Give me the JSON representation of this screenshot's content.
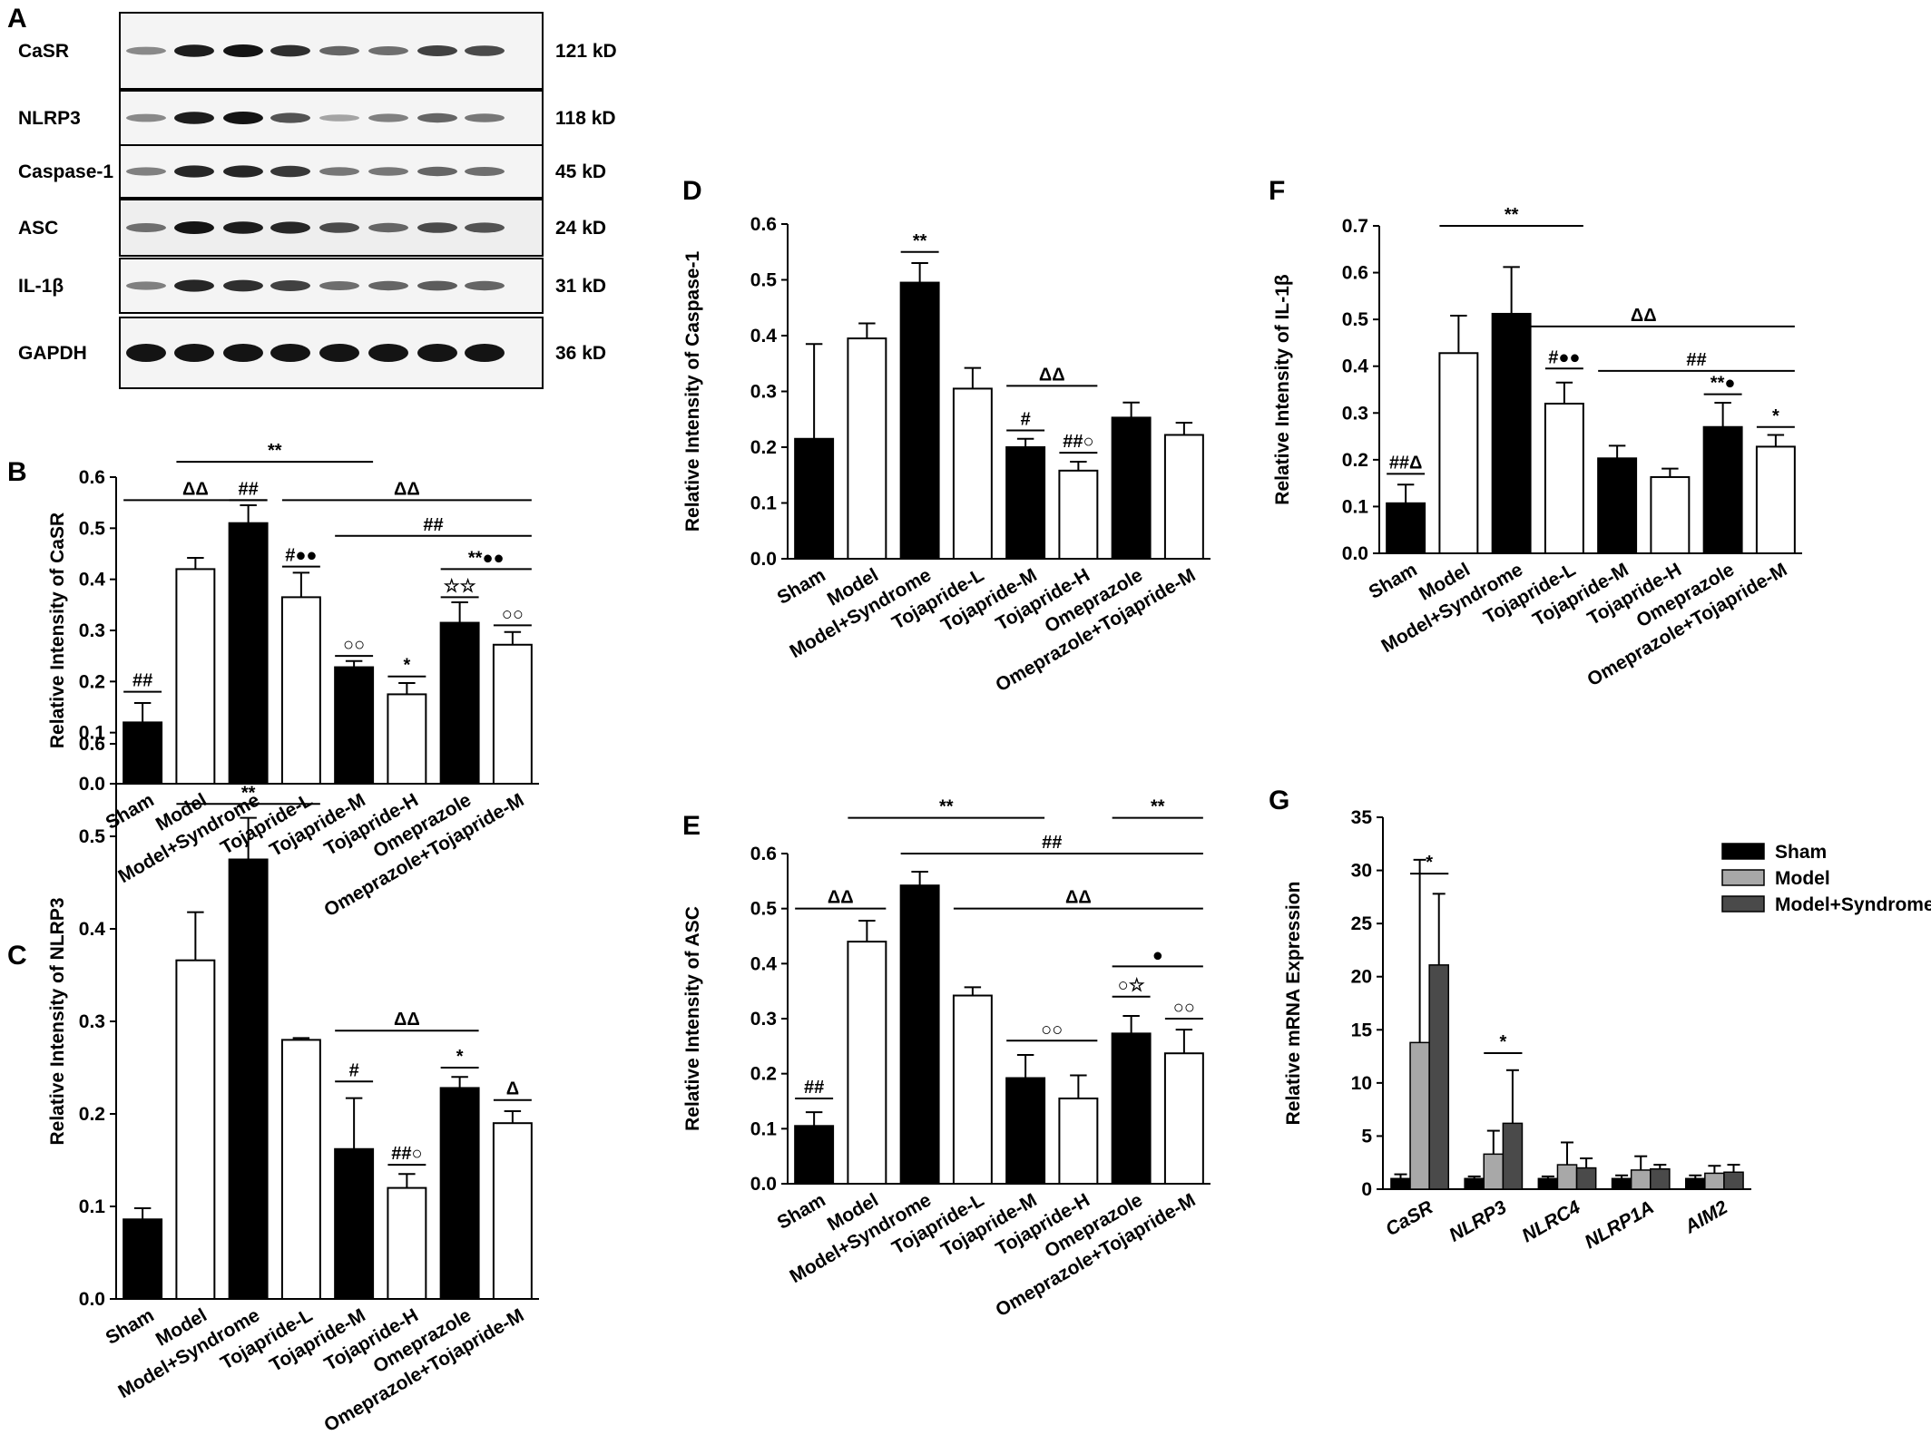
{
  "panels": {
    "A": "A",
    "B": "B",
    "C": "C",
    "D": "D",
    "E": "E",
    "F": "F",
    "G": "G"
  },
  "western_blot": {
    "rows": [
      {
        "protein": "CaSR",
        "size": "121 kD"
      },
      {
        "protein": "NLRP3",
        "size": "118 kD"
      },
      {
        "protein": "Caspase-1",
        "size": "45 kD"
      },
      {
        "protein": "ASC",
        "size": "24 kD"
      },
      {
        "protein": "IL-1β",
        "size": "31 kD"
      },
      {
        "protein": "GAPDH",
        "size": "36 kD"
      }
    ],
    "band_intensity": [
      [
        0.35,
        0.95,
        1.0,
        0.85,
        0.55,
        0.5,
        0.75,
        0.7
      ],
      [
        0.35,
        0.95,
        1.0,
        0.65,
        0.2,
        0.4,
        0.55,
        0.45
      ],
      [
        0.4,
        0.9,
        0.9,
        0.8,
        0.45,
        0.45,
        0.55,
        0.5
      ],
      [
        0.5,
        1.0,
        0.95,
        0.9,
        0.7,
        0.55,
        0.7,
        0.65
      ],
      [
        0.4,
        0.9,
        0.85,
        0.75,
        0.5,
        0.55,
        0.6,
        0.55
      ],
      [
        1.0,
        1.0,
        1.0,
        1.0,
        1.0,
        1.0,
        1.0,
        1.0
      ]
    ]
  },
  "chart_data": [
    {
      "panel": "B",
      "type": "bar",
      "ylabel": "Relative Intensity of CaSR",
      "ylim": [
        0,
        0.6
      ],
      "yticks": [
        "0.0",
        "0.1",
        "0.2",
        "0.3",
        "0.4",
        "0.5",
        "0.6"
      ],
      "categories": [
        "Sham",
        "Model",
        "Model+Syndrome",
        "Tojapride-L",
        "Tojapride-M",
        "Tojapride-H",
        "Omeprazole",
        "Omeprazole+Tojapride-M"
      ],
      "values": [
        0.12,
        0.42,
        0.51,
        0.365,
        0.228,
        0.175,
        0.315,
        0.272
      ],
      "errors": [
        0.038,
        0.022,
        0.035,
        0.048,
        0.012,
        0.022,
        0.04,
        0.025
      ],
      "fills": [
        "black",
        "white",
        "black",
        "white",
        "black",
        "white",
        "black",
        "white"
      ],
      "annotations": [
        {
          "text": "##",
          "from": 0,
          "to": 0,
          "y": 0.18
        },
        {
          "text": "ΔΔ",
          "from": 0,
          "to": 2,
          "y": 0.555
        },
        {
          "text": "##",
          "from": 2,
          "to": 2,
          "y": 0.555
        },
        {
          "text": "**",
          "from": 1,
          "to": 4,
          "y": 0.63
        },
        {
          "text": "#●●",
          "from": 3,
          "to": 3,
          "y": 0.425
        },
        {
          "text": "ΔΔ",
          "from": 3,
          "to": 7,
          "y": 0.555
        },
        {
          "text": "##",
          "from": 4,
          "to": 7,
          "y": 0.485
        },
        {
          "text": "**●●",
          "from": 6,
          "to": 7,
          "y": 0.42
        },
        {
          "text": "☆☆",
          "from": 6,
          "to": 6,
          "y": 0.365
        },
        {
          "text": "○○",
          "from": 4,
          "to": 4,
          "y": 0.25
        },
        {
          "text": "*",
          "from": 5,
          "to": 5,
          "y": 0.21
        },
        {
          "text": "○○",
          "from": 7,
          "to": 7,
          "y": 0.31
        }
      ]
    },
    {
      "panel": "C",
      "type": "bar",
      "ylabel": "Relative Intensity of NLRP3",
      "ylim": [
        0,
        0.6
      ],
      "yticks": [
        "0.0",
        "0.1",
        "0.2",
        "0.3",
        "0.4",
        "0.5",
        "0.6"
      ],
      "categories": [
        "Sham",
        "Model",
        "Model+Syndrome",
        "Tojapride-L",
        "Tojapride-M",
        "Tojapride-H",
        "Omeprazole",
        "Omeprazole+Tojapride-M"
      ],
      "values": [
        0.086,
        0.366,
        0.475,
        0.28,
        0.162,
        0.12,
        0.228,
        0.19
      ],
      "errors": [
        0.012,
        0.052,
        0.045,
        0.002,
        0.055,
        0.015,
        0.012,
        0.013
      ],
      "fills": [
        "black",
        "white",
        "black",
        "white",
        "black",
        "white",
        "black",
        "white"
      ],
      "annotations": [
        {
          "text": "**",
          "from": 1,
          "to": 3,
          "y": 0.535
        },
        {
          "text": "ΔΔ",
          "from": 4,
          "to": 6,
          "y": 0.29
        },
        {
          "text": "#",
          "from": 4,
          "to": 4,
          "y": 0.235
        },
        {
          "text": "##○",
          "from": 5,
          "to": 5,
          "y": 0.145
        },
        {
          "text": "*",
          "from": 6,
          "to": 6,
          "y": 0.25
        },
        {
          "text": "Δ",
          "from": 7,
          "to": 7,
          "y": 0.215
        }
      ]
    },
    {
      "panel": "D",
      "type": "bar",
      "ylabel": "Relative Intensity of Caspase-1",
      "ylim": [
        0,
        0.6
      ],
      "yticks": [
        "0.0",
        "0.1",
        "0.2",
        "0.3",
        "0.4",
        "0.5",
        "0.6"
      ],
      "categories": [
        "Sham",
        "Model",
        "Model+Syndrome",
        "Tojapride-L",
        "Tojapride-M",
        "Tojapride-H",
        "Omeprazole",
        "Omeprazole+Tojapride-M"
      ],
      "values": [
        0.215,
        0.395,
        0.495,
        0.305,
        0.2,
        0.158,
        0.253,
        0.222
      ],
      "errors": [
        0.17,
        0.027,
        0.035,
        0.037,
        0.015,
        0.016,
        0.027,
        0.022
      ],
      "fills": [
        "black",
        "white",
        "black",
        "white",
        "black",
        "white",
        "black",
        "white"
      ],
      "annotations": [
        {
          "text": "**",
          "from": 2,
          "to": 2,
          "y": 0.55
        },
        {
          "text": "ΔΔ",
          "from": 4,
          "to": 5,
          "y": 0.31
        },
        {
          "text": "#",
          "from": 4,
          "to": 4,
          "y": 0.23
        },
        {
          "text": "##○",
          "from": 5,
          "to": 5,
          "y": 0.19
        }
      ]
    },
    {
      "panel": "E",
      "type": "bar",
      "ylabel": "Relative Intensity of ASC",
      "ylim": [
        0,
        0.6
      ],
      "yticks": [
        "0.0",
        "0.1",
        "0.2",
        "0.3",
        "0.4",
        "0.5",
        "0.6"
      ],
      "categories": [
        "Sham",
        "Model",
        "Model+Syndrome",
        "Tojapride-L",
        "Tojapride-M",
        "Tojapride-H",
        "Omeprazole",
        "Omeprazole+Tojapride-M"
      ],
      "values": [
        0.105,
        0.44,
        0.542,
        0.342,
        0.192,
        0.155,
        0.273,
        0.237
      ],
      "errors": [
        0.025,
        0.038,
        0.025,
        0.015,
        0.042,
        0.042,
        0.032,
        0.043
      ],
      "fills": [
        "black",
        "white",
        "black",
        "white",
        "black",
        "white",
        "black",
        "white"
      ],
      "annotations": [
        {
          "text": "##",
          "from": 0,
          "to": 0,
          "y": 0.155
        },
        {
          "text": "ΔΔ",
          "from": 0,
          "to": 1,
          "y": 0.5
        },
        {
          "text": "**",
          "from": 1,
          "to": 4,
          "y": 0.665
        },
        {
          "text": "##",
          "from": 2,
          "to": 7,
          "y": 0.6
        },
        {
          "text": "ΔΔ",
          "from": 3,
          "to": 7,
          "y": 0.5
        },
        {
          "text": "○○",
          "from": 4,
          "to": 5,
          "y": 0.26
        },
        {
          "text": "**",
          "from": 6,
          "to": 7,
          "y": 0.665
        },
        {
          "text": "●",
          "from": 6,
          "to": 7,
          "y": 0.395
        },
        {
          "text": "○☆",
          "from": 6,
          "to": 6,
          "y": 0.34
        },
        {
          "text": "○○",
          "from": 7,
          "to": 7,
          "y": 0.3
        }
      ]
    },
    {
      "panel": "F",
      "type": "bar",
      "ylabel": "Relative Intensity of IL-1β",
      "ylim": [
        0,
        0.7
      ],
      "yticks": [
        "0.0",
        "0.1",
        "0.2",
        "0.3",
        "0.4",
        "0.5",
        "0.6",
        "0.7"
      ],
      "categories": [
        "Sham",
        "Model",
        "Model+Syndrome",
        "Tojapride-L",
        "Tojapride-M",
        "Tojapride-H",
        "Omeprazole",
        "Omeprazole+Tojapride-M"
      ],
      "values": [
        0.107,
        0.428,
        0.512,
        0.32,
        0.203,
        0.163,
        0.27,
        0.228
      ],
      "errors": [
        0.04,
        0.08,
        0.1,
        0.045,
        0.027,
        0.018,
        0.052,
        0.025
      ],
      "fills": [
        "black",
        "white",
        "black",
        "white",
        "black",
        "white",
        "black",
        "white"
      ],
      "annotations": [
        {
          "text": "##Δ",
          "from": 0,
          "to": 0,
          "y": 0.17
        },
        {
          "text": "**",
          "from": 1,
          "to": 3,
          "y": 0.7
        },
        {
          "text": "ΔΔ",
          "from": 2,
          "to": 7,
          "y": 0.485
        },
        {
          "text": "#●●",
          "from": 3,
          "to": 3,
          "y": 0.395
        },
        {
          "text": "##",
          "from": 4,
          "to": 7,
          "y": 0.39
        },
        {
          "text": "**●",
          "from": 6,
          "to": 6,
          "y": 0.34
        },
        {
          "text": "*",
          "from": 7,
          "to": 7,
          "y": 0.27
        }
      ]
    },
    {
      "panel": "G",
      "type": "bar",
      "ylabel": "Relative mRNA Expression",
      "ylim": [
        0,
        35
      ],
      "yticks": [
        "0",
        "5",
        "10",
        "15",
        "20",
        "25",
        "30",
        "35"
      ],
      "categories": [
        "CaSR",
        "NLRP3",
        "NLRC4",
        "NLRP1A",
        "AIM2"
      ],
      "series": [
        {
          "name": "Sham",
          "color": "#000000",
          "values": [
            1.0,
            1.0,
            1.0,
            1.0,
            1.0
          ],
          "errors": [
            0.4,
            0.2,
            0.2,
            0.3,
            0.3
          ]
        },
        {
          "name": "Model",
          "color": "#a8a8a8",
          "values": [
            13.8,
            3.3,
            2.3,
            1.8,
            1.5
          ],
          "errors": [
            17.2,
            2.2,
            2.1,
            1.3,
            0.7
          ]
        },
        {
          "name": "Model+Syndrome",
          "color": "#4a4a4a",
          "values": [
            21.1,
            6.2,
            2.0,
            1.9,
            1.6
          ],
          "errors": [
            6.7,
            5.0,
            0.9,
            0.4,
            0.7
          ]
        }
      ],
      "annotations": [
        {
          "text": "*",
          "from": 1,
          "to": 2,
          "y": 29.7,
          "group": 0
        },
        {
          "text": "*",
          "from": 1,
          "to": 2,
          "y": 12.8,
          "group": 1
        }
      ],
      "legend_position": "top-right"
    }
  ]
}
